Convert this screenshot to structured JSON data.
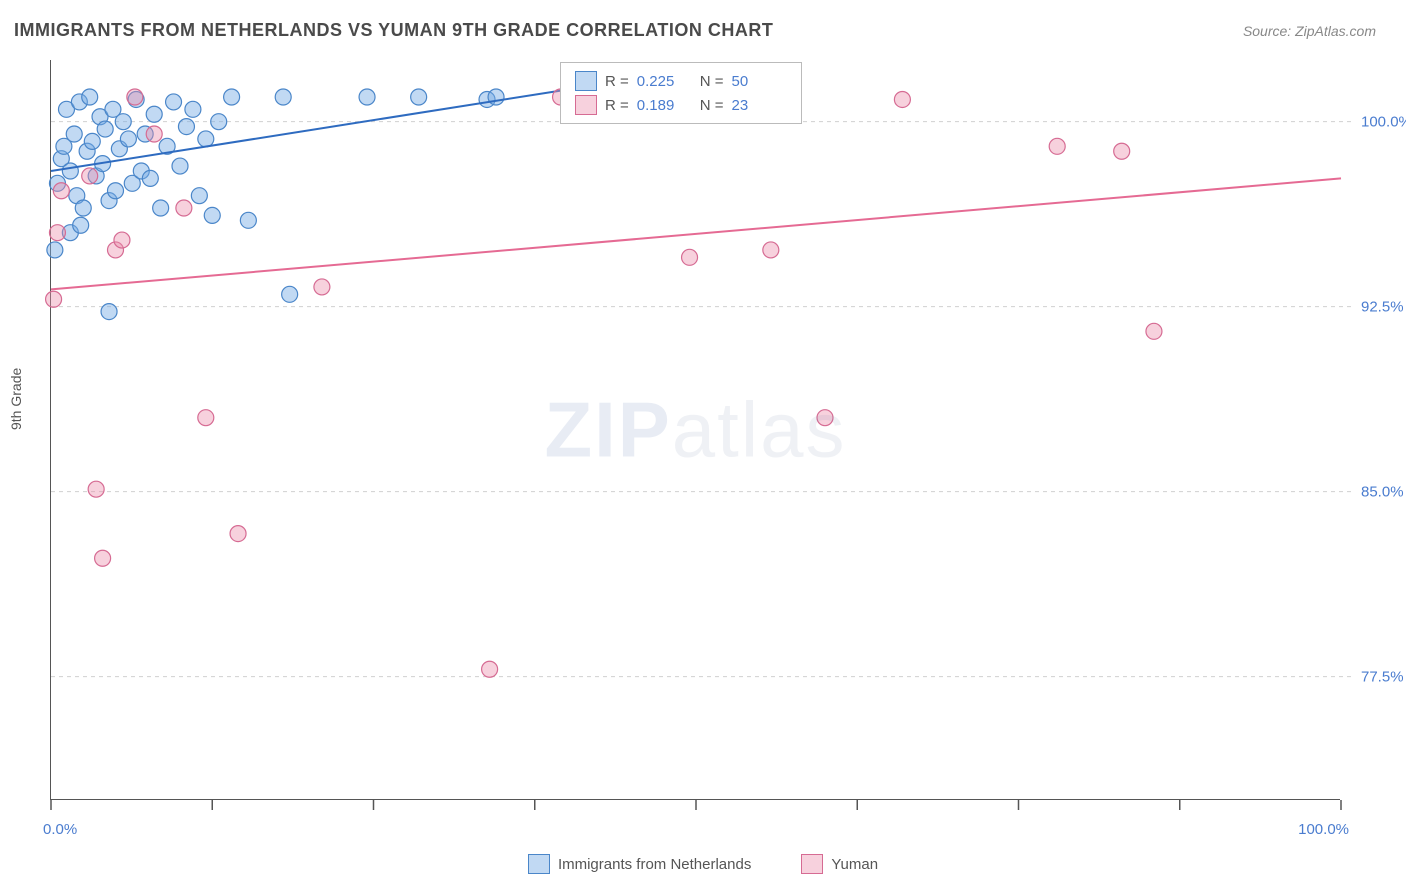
{
  "title": "IMMIGRANTS FROM NETHERLANDS VS YUMAN 9TH GRADE CORRELATION CHART",
  "source_prefix": "Source: ",
  "source": "ZipAtlas.com",
  "y_axis_label": "9th Grade",
  "watermark_bold": "ZIP",
  "watermark_rest": "atlas",
  "chart": {
    "type": "scatter",
    "xlim": [
      0,
      100
    ],
    "ylim": [
      72.5,
      102.5
    ],
    "yticks": [
      {
        "value": 77.5,
        "label": "77.5%"
      },
      {
        "value": 85.0,
        "label": "85.0%"
      },
      {
        "value": 92.5,
        "label": "92.5%"
      },
      {
        "value": 100.0,
        "label": "100.0%"
      }
    ],
    "xtick_positions": [
      0,
      12.5,
      25,
      37.5,
      50,
      62.5,
      75,
      87.5,
      100
    ],
    "xtick_labels": {
      "left": "0.0%",
      "right": "100.0%"
    },
    "background_color": "#ffffff",
    "grid_color": "#d0d0d0",
    "axis_color": "#555555",
    "marker_radius": 8,
    "marker_stroke_width": 1.2,
    "trend_line_width": 2,
    "series": [
      {
        "name": "Immigrants from Netherlands",
        "fill": "rgba(118,170,228,0.45)",
        "stroke": "#4a86c9",
        "line_color": "#2e6bc0",
        "R": "0.225",
        "N": "50",
        "trend": {
          "x1": 0,
          "y1": 98.0,
          "x2": 40,
          "y2": 101.3
        },
        "points": [
          [
            0.5,
            97.5
          ],
          [
            0.8,
            98.5
          ],
          [
            1.0,
            99.0
          ],
          [
            1.2,
            100.5
          ],
          [
            1.5,
            98.0
          ],
          [
            1.8,
            99.5
          ],
          [
            2.0,
            97.0
          ],
          [
            2.2,
            100.8
          ],
          [
            2.5,
            96.5
          ],
          [
            2.8,
            98.8
          ],
          [
            3.0,
            101.0
          ],
          [
            3.2,
            99.2
          ],
          [
            3.5,
            97.8
          ],
          [
            3.8,
            100.2
          ],
          [
            4.0,
            98.3
          ],
          [
            4.2,
            99.7
          ],
          [
            4.5,
            96.8
          ],
          [
            4.8,
            100.5
          ],
          [
            5.0,
            97.2
          ],
          [
            5.3,
            98.9
          ],
          [
            5.6,
            100.0
          ],
          [
            6.0,
            99.3
          ],
          [
            6.3,
            97.5
          ],
          [
            6.6,
            100.9
          ],
          [
            7.0,
            98.0
          ],
          [
            7.3,
            99.5
          ],
          [
            7.7,
            97.7
          ],
          [
            8.0,
            100.3
          ],
          [
            8.5,
            96.5
          ],
          [
            9.0,
            99.0
          ],
          [
            9.5,
            100.8
          ],
          [
            10.0,
            98.2
          ],
          [
            10.5,
            99.8
          ],
          [
            11.0,
            100.5
          ],
          [
            11.5,
            97.0
          ],
          [
            12.0,
            99.3
          ],
          [
            12.5,
            96.2
          ],
          [
            13.0,
            100.0
          ],
          [
            14.0,
            101.0
          ],
          [
            15.3,
            96.0
          ],
          [
            18.0,
            101.0
          ],
          [
            18.5,
            93.0
          ],
          [
            24.5,
            101.0
          ],
          [
            28.5,
            101.0
          ],
          [
            33.8,
            100.9
          ],
          [
            34.5,
            101.0
          ],
          [
            4.5,
            92.3
          ],
          [
            1.5,
            95.5
          ],
          [
            2.3,
            95.8
          ],
          [
            0.3,
            94.8
          ]
        ]
      },
      {
        "name": "Yuman",
        "fill": "rgba(236,140,170,0.40)",
        "stroke": "#d66b93",
        "line_color": "#e56a93",
        "R": "0.189",
        "N": "23",
        "trend": {
          "x1": 0,
          "y1": 93.2,
          "x2": 100,
          "y2": 97.7
        },
        "points": [
          [
            0.2,
            92.8
          ],
          [
            0.5,
            95.5
          ],
          [
            3.5,
            85.1
          ],
          [
            4.0,
            82.3
          ],
          [
            5.0,
            94.8
          ],
          [
            6.5,
            101.0
          ],
          [
            8.0,
            99.5
          ],
          [
            10.3,
            96.5
          ],
          [
            12.0,
            88.0
          ],
          [
            14.5,
            83.3
          ],
          [
            21.0,
            93.3
          ],
          [
            34.0,
            77.8
          ],
          [
            39.5,
            101.0
          ],
          [
            49.5,
            94.5
          ],
          [
            55.8,
            94.8
          ],
          [
            60.0,
            88.0
          ],
          [
            66.0,
            100.9
          ],
          [
            78.0,
            99.0
          ],
          [
            83.0,
            98.8
          ],
          [
            85.5,
            91.5
          ],
          [
            0.8,
            97.2
          ],
          [
            3.0,
            97.8
          ],
          [
            5.5,
            95.2
          ]
        ]
      }
    ]
  },
  "legend": {
    "series1_label": "Immigrants from Netherlands",
    "series2_label": "Yuman"
  },
  "stats_box": {
    "r_label": "R =",
    "n_label": "N ="
  }
}
